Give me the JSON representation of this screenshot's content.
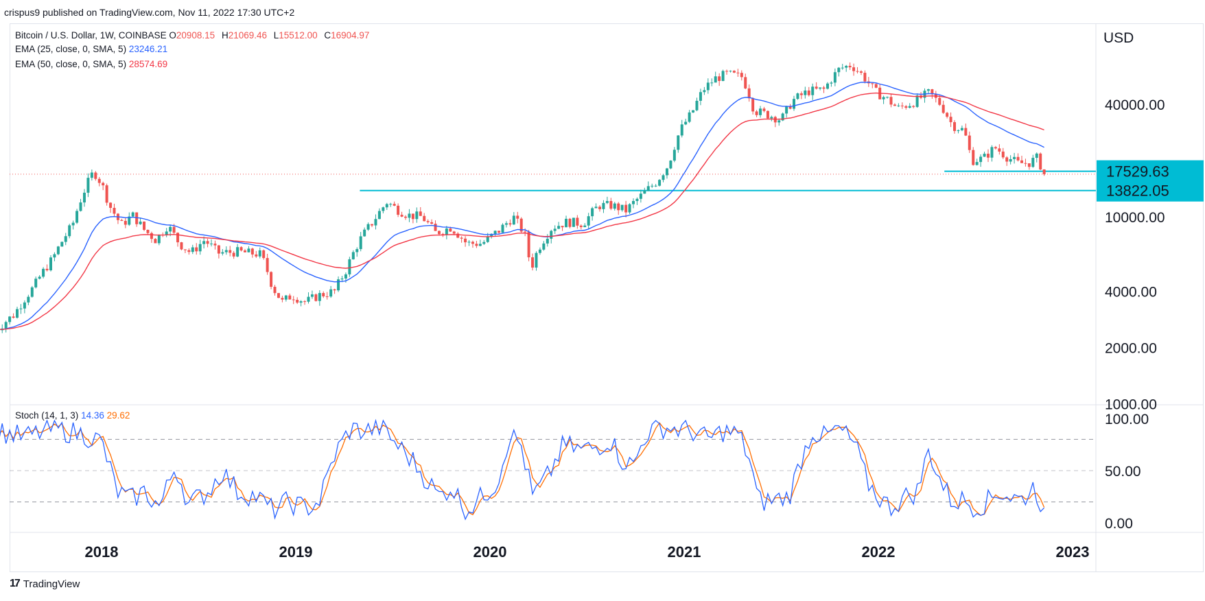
{
  "header": {
    "publisher_line": "crispus9 published on TradingView.com, Nov 11, 2022 17:30 UTC+2"
  },
  "legend": {
    "pair": "Bitcoin / U.S. Dollar, 1W, COINBASE",
    "ohlc": {
      "o_label": "O",
      "o": "20908.15",
      "h_label": "H",
      "h": "21069.46",
      "l_label": "L",
      "l": "15512.00",
      "c_label": "C",
      "c": "16904.97"
    },
    "ema25_label": "EMA (25, close, 0, SMA, 5)",
    "ema25_value": "23246.21",
    "ema50_label": "EMA (50, close, 0, SMA, 5)",
    "ema50_value": "28574.69",
    "stoch_label": "Stoch (14, 1, 3)",
    "stoch_k": "14.36",
    "stoch_d": "29.62"
  },
  "price_axis": {
    "currency": "USD",
    "ticks": [
      "40000.00",
      "10000.00",
      "4000.00",
      "2000.00",
      "1000.00"
    ]
  },
  "stoch_axis": {
    "ticks": [
      "100.00",
      "50.00",
      "0.00"
    ]
  },
  "x_axis": {
    "ticks": [
      "2018",
      "2019",
      "2020",
      "2021",
      "2022",
      "2023"
    ]
  },
  "badges": [
    {
      "label": "17529.63"
    },
    {
      "label": "13822.05"
    }
  ],
  "footer": {
    "brand": "TradingView",
    "brand_icon": "tradingview-logo-icon"
  },
  "colors": {
    "up": "#26a69a",
    "down": "#ef5350",
    "ema25": "#2962ff",
    "ema50": "#f23645",
    "stoch_k": "#2962ff",
    "stoch_d": "#ff6d00",
    "support": "#00bcd4",
    "badge": "#00bcd4"
  },
  "chart_data": {
    "type": "candlestick",
    "title": "Bitcoin / U.S. Dollar, 1W, COINBASE",
    "scale": "log",
    "ylabel": "USD",
    "x_range": [
      2017.45,
      2022.86
    ],
    "y_range": [
      1000,
      80000
    ],
    "support_levels": [
      17529.63,
      13822.05
    ],
    "last_close": 16904.97,
    "price_path": [
      [
        2017.46,
        2500
      ],
      [
        2017.55,
        3000
      ],
      [
        2017.65,
        4200
      ],
      [
        2017.75,
        6000
      ],
      [
        2017.85,
        9000
      ],
      [
        2017.92,
        14500
      ],
      [
        2017.96,
        17500
      ],
      [
        2018.0,
        15000
      ],
      [
        2018.04,
        11500
      ],
      [
        2018.1,
        9000
      ],
      [
        2018.16,
        10200
      ],
      [
        2018.22,
        8500
      ],
      [
        2018.28,
        7500
      ],
      [
        2018.34,
        9000
      ],
      [
        2018.4,
        7200
      ],
      [
        2018.46,
        6400
      ],
      [
        2018.53,
        7500
      ],
      [
        2018.6,
        6400
      ],
      [
        2018.7,
        6500
      ],
      [
        2018.82,
        6300
      ],
      [
        2018.88,
        4200
      ],
      [
        2018.93,
        3500
      ],
      [
        2018.98,
        3800
      ],
      [
        2019.05,
        3500
      ],
      [
        2019.12,
        3800
      ],
      [
        2019.2,
        4000
      ],
      [
        2019.26,
        5200
      ],
      [
        2019.33,
        7500
      ],
      [
        2019.4,
        9500
      ],
      [
        2019.47,
        12000
      ],
      [
        2019.52,
        11000
      ],
      [
        2019.58,
        10200
      ],
      [
        2019.65,
        10000
      ],
      [
        2019.72,
        8200
      ],
      [
        2019.8,
        8800
      ],
      [
        2019.88,
        7200
      ],
      [
        2019.96,
        7200
      ],
      [
        2020.05,
        8500
      ],
      [
        2020.12,
        10000
      ],
      [
        2020.18,
        8000
      ],
      [
        2020.21,
        5200
      ],
      [
        2020.25,
        6800
      ],
      [
        2020.32,
        8800
      ],
      [
        2020.4,
        9400
      ],
      [
        2020.48,
        9200
      ],
      [
        2020.56,
        11500
      ],
      [
        2020.63,
        11500
      ],
      [
        2020.7,
        10800
      ],
      [
        2020.78,
        13000
      ],
      [
        2020.86,
        15500
      ],
      [
        2020.92,
        19000
      ],
      [
        2020.98,
        29000
      ],
      [
        2021.04,
        36000
      ],
      [
        2021.1,
        48000
      ],
      [
        2021.16,
        55000
      ],
      [
        2021.22,
        58000
      ],
      [
        2021.3,
        56000
      ],
      [
        2021.36,
        37000
      ],
      [
        2021.44,
        35000
      ],
      [
        2021.5,
        33000
      ],
      [
        2021.56,
        42000
      ],
      [
        2021.64,
        47000
      ],
      [
        2021.72,
        48000
      ],
      [
        2021.8,
        62000
      ],
      [
        2021.86,
        65000
      ],
      [
        2021.92,
        57000
      ],
      [
        2021.98,
        47000
      ],
      [
        2022.04,
        43000
      ],
      [
        2022.1,
        38000
      ],
      [
        2022.18,
        41000
      ],
      [
        2022.26,
        46000
      ],
      [
        2022.32,
        40000
      ],
      [
        2022.38,
        31000
      ],
      [
        2022.44,
        29000
      ],
      [
        2022.48,
        20000
      ],
      [
        2022.54,
        20500
      ],
      [
        2022.6,
        23500
      ],
      [
        2022.66,
        21000
      ],
      [
        2022.72,
        19300
      ],
      [
        2022.78,
        19500
      ],
      [
        2022.82,
        20800
      ],
      [
        2022.85,
        16900
      ]
    ],
    "stochastic": {
      "k_name": "%K",
      "d_name": "%D",
      "y_range": [
        0,
        100
      ],
      "bands": [
        80,
        50,
        20
      ],
      "path": [
        [
          2017.46,
          88
        ],
        [
          2017.6,
          82
        ],
        [
          2017.75,
          90
        ],
        [
          2017.9,
          85
        ],
        [
          2018.0,
          78
        ],
        [
          2018.08,
          30
        ],
        [
          2018.15,
          22
        ],
        [
          2018.22,
          30
        ],
        [
          2018.3,
          15
        ],
        [
          2018.38,
          55
        ],
        [
          2018.45,
          18
        ],
        [
          2018.55,
          30
        ],
        [
          2018.62,
          50
        ],
        [
          2018.7,
          30
        ],
        [
          2018.8,
          25
        ],
        [
          2018.88,
          12
        ],
        [
          2018.96,
          20
        ],
        [
          2019.05,
          14
        ],
        [
          2019.12,
          20
        ],
        [
          2019.2,
          65
        ],
        [
          2019.28,
          90
        ],
        [
          2019.36,
          88
        ],
        [
          2019.44,
          92
        ],
        [
          2019.52,
          75
        ],
        [
          2019.6,
          60
        ],
        [
          2019.68,
          40
        ],
        [
          2019.74,
          25
        ],
        [
          2019.8,
          35
        ],
        [
          2019.88,
          12
        ],
        [
          2019.96,
          25
        ],
        [
          2020.04,
          40
        ],
        [
          2020.1,
          85
        ],
        [
          2020.16,
          75
        ],
        [
          2020.22,
          25
        ],
        [
          2020.3,
          45
        ],
        [
          2020.38,
          75
        ],
        [
          2020.46,
          70
        ],
        [
          2020.54,
          72
        ],
        [
          2020.62,
          80
        ],
        [
          2020.68,
          60
        ],
        [
          2020.74,
          55
        ],
        [
          2020.8,
          85
        ],
        [
          2020.88,
          92
        ],
        [
          2020.96,
          90
        ],
        [
          2021.04,
          88
        ],
        [
          2021.12,
          80
        ],
        [
          2021.2,
          88
        ],
        [
          2021.28,
          85
        ],
        [
          2021.34,
          60
        ],
        [
          2021.38,
          20
        ],
        [
          2021.46,
          22
        ],
        [
          2021.54,
          25
        ],
        [
          2021.6,
          60
        ],
        [
          2021.66,
          88
        ],
        [
          2021.72,
          82
        ],
        [
          2021.8,
          90
        ],
        [
          2021.88,
          75
        ],
        [
          2021.94,
          40
        ],
        [
          2022.0,
          25
        ],
        [
          2022.06,
          15
        ],
        [
          2022.14,
          25
        ],
        [
          2022.2,
          30
        ],
        [
          2022.26,
          70
        ],
        [
          2022.32,
          40
        ],
        [
          2022.38,
          20
        ],
        [
          2022.44,
          22
        ],
        [
          2022.5,
          15
        ],
        [
          2022.56,
          20
        ],
        [
          2022.62,
          30
        ],
        [
          2022.68,
          25
        ],
        [
          2022.74,
          22
        ],
        [
          2022.8,
          35
        ],
        [
          2022.85,
          14
        ]
      ]
    }
  }
}
